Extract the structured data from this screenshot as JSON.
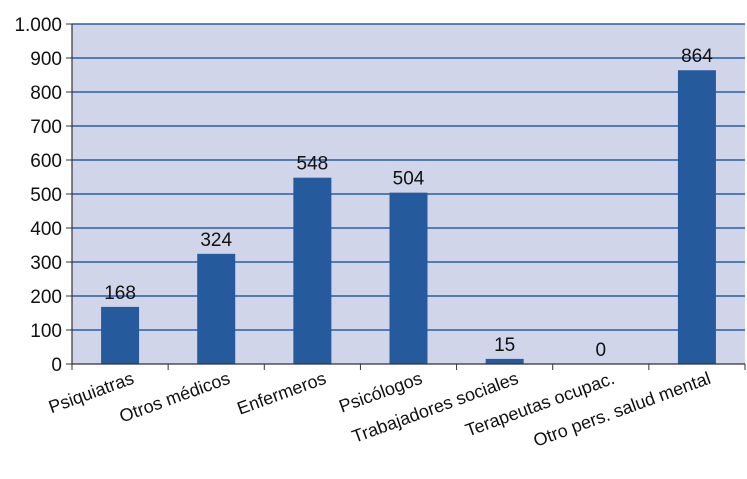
{
  "chart_data": {
    "type": "bar",
    "categories": [
      "Psiquiatras",
      "Otros médicos",
      "Enfermeros",
      "Psicólogos",
      "Trabajadores sociales",
      "Terapeutas ocupac.",
      "Otro pers. salud mental"
    ],
    "values": [
      168,
      324,
      548,
      504,
      15,
      0,
      864
    ],
    "data_labels": [
      "168",
      "324",
      "548",
      "504",
      "15",
      "0",
      "864"
    ],
    "yticks": [
      0,
      100,
      200,
      300,
      400,
      500,
      600,
      700,
      800,
      900,
      1000
    ],
    "ytick_labels": [
      "0",
      "100",
      "200",
      "300",
      "400",
      "500",
      "600",
      "700",
      "800",
      "900",
      "1.000"
    ],
    "ylim": [
      0,
      1000
    ],
    "grid": true,
    "legend": "none"
  },
  "colors": {
    "plot_background": "#d0d5e9",
    "bar": "#255b9c",
    "gridline": "#2b5ea3",
    "axis": "#333333"
  }
}
